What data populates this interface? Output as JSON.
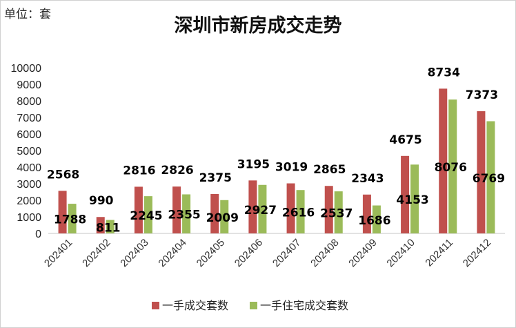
{
  "chart_data": {
    "type": "bar",
    "title": "深圳市新房成交走势",
    "unit_label": "单位：套",
    "xlabel": "",
    "ylabel": "",
    "ylim": [
      0,
      10000
    ],
    "yticks": [
      0,
      1000,
      2000,
      3000,
      4000,
      5000,
      6000,
      7000,
      8000,
      9000,
      10000
    ],
    "grid": false,
    "legend": "bottom",
    "categories": [
      "202401",
      "202402",
      "202403",
      "202404",
      "202405",
      "202406",
      "202407",
      "202408",
      "202409",
      "202410",
      "202411",
      "202412"
    ],
    "series": [
      {
        "name": "一手成交套数",
        "color": "#c0504d",
        "values": [
          2568,
          990,
          2816,
          2826,
          2375,
          3195,
          3019,
          2865,
          2343,
          4675,
          8734,
          7373
        ]
      },
      {
        "name": "一手住宅成交套数",
        "color": "#9bbb59",
        "values": [
          1788,
          811,
          2245,
          2355,
          2009,
          2927,
          2616,
          2537,
          1686,
          4153,
          8076,
          6769
        ]
      }
    ]
  }
}
